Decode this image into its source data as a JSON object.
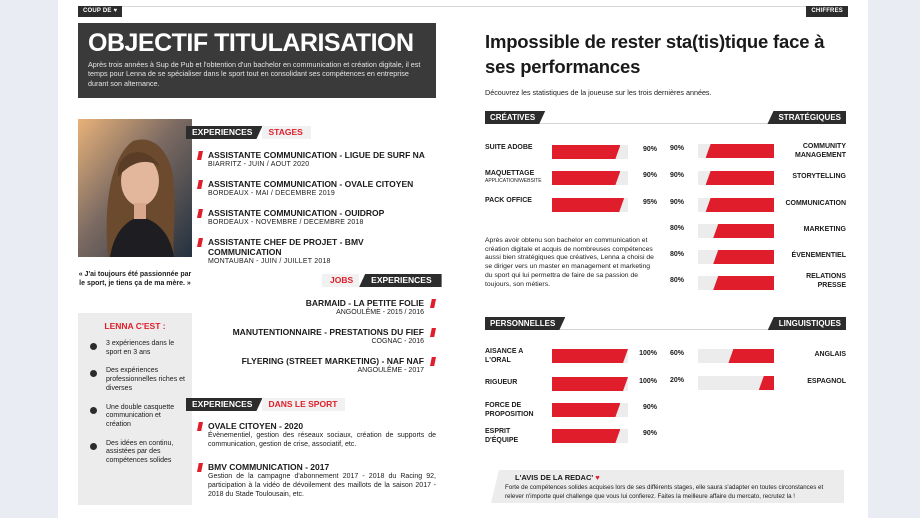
{
  "tags": {
    "left": "COUP DE ♥",
    "right": "CHIFFRES"
  },
  "hero": {
    "title": "OBJECTIF TITULARISATION",
    "text": "Après trois années à Sup de Pub et l'obtention d'un bachelor en communication et création digitale, il est temps pour Lenna de se spécialiser dans le sport tout en consolidant ses compétences en entreprise durant son alternance."
  },
  "quote": "« J'ai toujours été passionnée par le sport, je tiens ça de ma mère. »",
  "lenna": {
    "title": "LENNA C'EST :",
    "items": [
      "3 expériences dans le sport en 3 ans",
      "Des expériences professionnelles riches et diverses",
      "Une double casquette communication et création",
      "Des idées en continu, assistées par des compétences solides"
    ]
  },
  "stages": {
    "head_dark": "EXPERIENCES",
    "head_light": "STAGES",
    "items": [
      {
        "title": "ASSISTANTE COMMUNICATION - LIGUE DE SURF NA",
        "sub": "BIARRITZ - JUIN / AOUT 2020"
      },
      {
        "title": "ASSISTANTE COMMUNICATION - OVALE CITOYEN",
        "sub": "BORDEAUX - MAI / DECEMBRE 2019"
      },
      {
        "title": "ASSISTANTE COMMUNICATION - OUIDROP",
        "sub": "BORDEAUX - NOVEMBRE / DECEMBRE 2018"
      },
      {
        "title": "ASSISTANTE CHEF DE PROJET - BMV COMMUNICATION",
        "sub": "MONTAUBAN - JUIN / JUILLET 2018"
      }
    ]
  },
  "jobs": {
    "head_light": "JOBS",
    "head_dark": "EXPERIENCES",
    "items": [
      {
        "title": "BARMAID - LA PETITE FOLIE",
        "sub": "ANGOULÊME - 2015 / 2016"
      },
      {
        "title": "MANUTENTIONNAIRE - PRESTATIONS DU FIEF",
        "sub": "COGNAC - 2016"
      },
      {
        "title": "FLYERING (STREET MARKETING) - NAF NAF",
        "sub": "ANGOULÊME - 2017"
      }
    ]
  },
  "sport": {
    "head_dark": "EXPERIENCES",
    "head_light": "DANS LE SPORT",
    "items": [
      {
        "title": "OVALE CITOYEN - 2020",
        "desc": "Évènementiel, gestion des réseaux sociaux, création de supports de communication, gestion de crise, associatif, etc."
      },
      {
        "title": "BMV COMMUNICATION - 2017",
        "desc": "Gestion de la campagne d'abonnement 2017 - 2018 du Racing 92, participation à la vidéo de dévoilement des maillots de la saison 2017 - 2018 du Stade Toulousain, etc."
      }
    ]
  },
  "stats": {
    "title": "Impossible de rester sta(tis)tique face à ses performances",
    "subtitle": "Découvrez les statistiques de la joueuse sur les trois dernières années.",
    "creatives": {
      "label": "CRÉATIVES",
      "items": [
        {
          "name": "SUITE ADOBE",
          "note": "",
          "value": 90,
          "pct": "90%"
        },
        {
          "name": "MAQUETTAGE",
          "note": "APPLICATION/WEBSITE",
          "value": 90,
          "pct": "90%"
        },
        {
          "name": "PACK OFFICE",
          "note": "",
          "value": 95,
          "pct": "95%"
        }
      ]
    },
    "strategiques": {
      "label": "STRATÉGIQUES",
      "items": [
        {
          "name": "COMMUNITY MANAGEMENT",
          "value": 90,
          "pct": "90%"
        },
        {
          "name": "STORYTELLING",
          "value": 90,
          "pct": "90%"
        },
        {
          "name": "COMMUNICATION",
          "value": 90,
          "pct": "90%"
        },
        {
          "name": "MARKETING",
          "value": 80,
          "pct": "80%"
        },
        {
          "name": "ÉVENEMENTIEL",
          "value": 80,
          "pct": "80%"
        },
        {
          "name": "RELATIONS PRESSE",
          "value": 80,
          "pct": "80%"
        }
      ]
    },
    "paragraph": "Après avoir obtenu son bachelor en communication et création digitale et acquis de nombreuses compétences aussi bien stratégiques que créatives, Lenna a choisi de se diriger vers un master en management et marketing du sport qui lui permettra de faire de sa passion de toujours, son métiers.",
    "personnelles": {
      "label": "PERSONNELLES",
      "items": [
        {
          "name": "AISANCE A L'ORAL",
          "value": 100,
          "pct": "100%"
        },
        {
          "name": "RIGUEUR",
          "value": 100,
          "pct": "100%"
        },
        {
          "name": "FORCE DE PROPOSITION",
          "value": 90,
          "pct": "90%"
        },
        {
          "name": "ESPRIT D'ÉQUIPE",
          "value": 90,
          "pct": "90%"
        }
      ]
    },
    "linguistiques": {
      "label": "LINGUISTIQUES",
      "items": [
        {
          "name": "ANGLAIS",
          "value": 60,
          "pct": "60%"
        },
        {
          "name": "ESPAGNOL",
          "value": 20,
          "pct": "20%"
        }
      ]
    }
  },
  "avis": {
    "title": "L'AVIS DE LA REDAC'",
    "heart": "♥",
    "text": "Forte de compétences solides acquises lors de ses différents stages, elle saura s'adapter en toutes circonstances et relever n'importe quel challenge que vous lui confierez. Faites la meilleure affaire du mercato, recrutez la !"
  },
  "colors": {
    "accent": "#e01e2b",
    "dark": "#2c2c2c",
    "hero_bg": "#3a3a3a",
    "panel": "#ececec"
  }
}
